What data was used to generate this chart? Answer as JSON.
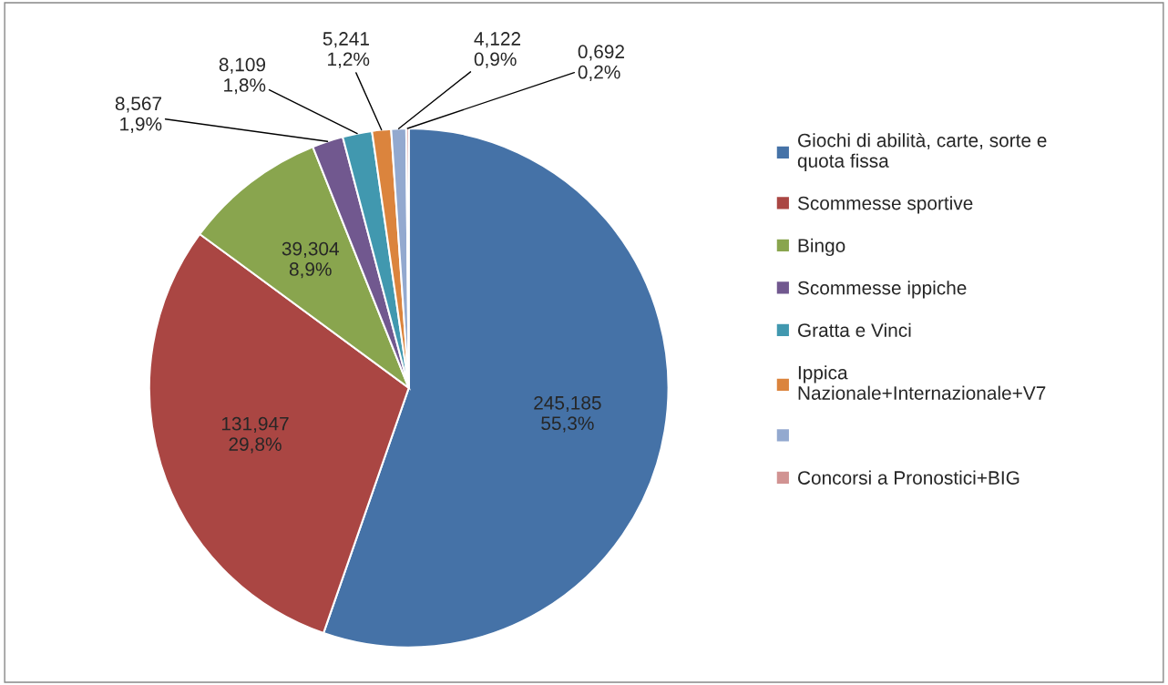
{
  "chart_data": {
    "type": "pie",
    "categories": [
      "Giochi di abilità, carte, sorte e quota fissa",
      "Scommesse sportive",
      "Bingo",
      "Scommesse ippiche",
      "Gratta e Vinci",
      "Ippica Nazionale+Internazionale+V7",
      null,
      "Concorsi a Pronostici+BIG"
    ],
    "values": [
      245.185,
      131.947,
      39.304,
      8.567,
      8.109,
      5.241,
      4.122,
      0.692
    ],
    "colors": [
      "#4572a7",
      "#aa4643",
      "#89a54e",
      "#71588f",
      "#4198af",
      "#db843d",
      "#93a9cf",
      "#d19392"
    ],
    "value_labels": [
      "245,185\n55,3%",
      "131,947\n29,8%",
      "39,304\n8,9%",
      "8,567\n1,9%",
      "8,109\n1,8%",
      "5,241\n1,2%",
      "4,122\n0,9%",
      "0,692\n0,2%"
    ],
    "legend": "right"
  }
}
